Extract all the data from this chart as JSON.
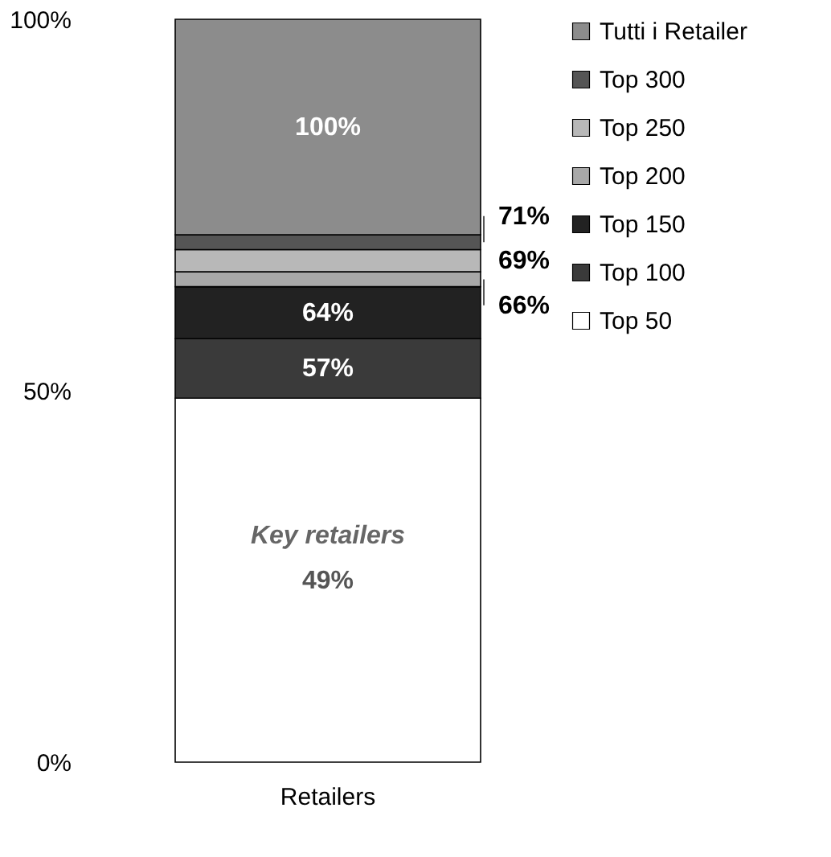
{
  "chart_data": {
    "type": "bar",
    "stacked": true,
    "categories": [
      "Retailers"
    ],
    "series": [
      {
        "name": "Top 50",
        "color": "#ffffff",
        "values": [
          49
        ]
      },
      {
        "name": "Top 100",
        "color": "#3a3a3a",
        "values": [
          8
        ]
      },
      {
        "name": "Top 150",
        "color": "#222222",
        "values": [
          7
        ]
      },
      {
        "name": "Top 200",
        "color": "#a8a8a8",
        "values": [
          2
        ]
      },
      {
        "name": "Top 250",
        "color": "#b8b8b8",
        "values": [
          3
        ]
      },
      {
        "name": "Top 300",
        "color": "#555555",
        "values": [
          2
        ]
      },
      {
        "name": "Tutti i Retailer",
        "color": "#8c8c8c",
        "values": [
          29
        ]
      }
    ],
    "ylim": [
      0,
      100
    ],
    "yticks": [
      {
        "value": 0,
        "label": "0%"
      },
      {
        "value": 50,
        "label": "50%"
      },
      {
        "value": 100,
        "label": "100%"
      }
    ],
    "grid": false,
    "legend": "right",
    "annotations": [
      "Key retailers",
      "49%",
      "57%",
      "64%",
      "66%",
      "69%",
      "71%",
      "100%"
    ]
  }
}
